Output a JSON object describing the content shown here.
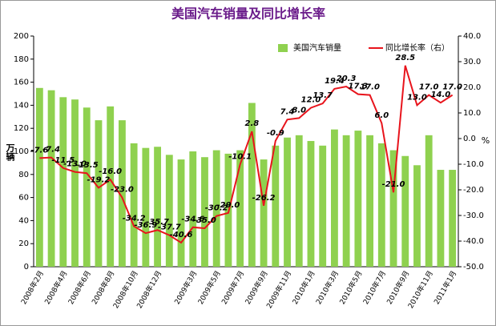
{
  "chart_data": {
    "type": "bar",
    "title": "美国汽车销量及同比增长率",
    "ylabel": "万辆",
    "y2label": "%",
    "categories": [
      "2008年2月",
      null,
      "2008年4月",
      null,
      "2008年6月",
      null,
      "2008年8月",
      null,
      "2008年10月",
      null,
      "2008年12月",
      null,
      null,
      "2009年3月",
      null,
      "2009年5月",
      null,
      "2009年7月",
      null,
      "2009年9月",
      null,
      "2009年11月",
      null,
      "2010年1月",
      null,
      "2010年3月",
      null,
      "2010年5月",
      null,
      "2010年7月",
      null,
      "2010年9月",
      null,
      "2010年11月",
      null,
      "2011年1月"
    ],
    "series": [
      {
        "name": "美国汽车销量",
        "type": "bar",
        "color": "#8fd14f",
        "values": [
          155,
          153,
          147,
          145,
          138,
          127,
          139,
          127,
          107,
          103,
          104,
          97,
          93,
          100,
          95,
          101,
          98,
          101,
          142,
          93,
          105,
          112,
          114,
          109,
          105,
          119,
          114,
          118,
          114,
          107,
          101,
          96,
          88,
          114,
          84,
          84
        ]
      },
      {
        "name": "同比增长率（右）",
        "type": "line",
        "axis": "y2",
        "color": "#e8141c",
        "values": [
          -7.6,
          -7.4,
          -11.5,
          -13.0,
          -13.5,
          -19.2,
          -16.0,
          -23.0,
          -34.2,
          -36.9,
          -35.7,
          -37.7,
          -40.6,
          -34.6,
          -35.0,
          -30.2,
          -29.0,
          -10.1,
          2.8,
          -26.2,
          -0.9,
          7.4,
          8.0,
          12.0,
          13.7,
          19.4,
          20.3,
          17.3,
          17.0,
          6.0,
          -21.0,
          28.5,
          13.0,
          17.0,
          14.0,
          17.0
        ],
        "value_labels": [
          "-7.6",
          "-7.4",
          "-11.5",
          "-13.0",
          "-13.5",
          "-19.2",
          "-16.0",
          "-23.0",
          "-34.2",
          "-36.9",
          "-35.7",
          "-37.7",
          "-40.6",
          "-34.6",
          "-35.0",
          "-30.2",
          "-29.0",
          "-10.1",
          "2.8",
          "-26.2",
          "-0.9",
          "7.4",
          "8.0",
          "12.0",
          "13.7",
          "19.4",
          "20.3",
          "17.3",
          "17.0",
          "6.0",
          "-21.0",
          "28.5",
          "13.0",
          "17.0",
          "14.0",
          "17.0"
        ]
      }
    ],
    "ylim": [
      0,
      200
    ],
    "yticks": [
      0,
      20,
      40,
      60,
      80,
      100,
      120,
      140,
      160,
      180,
      200
    ],
    "y2lim": [
      -50,
      40
    ],
    "y2ticks": [
      {
        "value": -50,
        "label": "-50.0"
      },
      {
        "value": -40,
        "label": "-40.0"
      },
      {
        "value": -30,
        "label": "-30.0"
      },
      {
        "value": -20,
        "label": "-20.0"
      },
      {
        "value": -10,
        "label": "-10.0"
      },
      {
        "value": 0,
        "label": "0.0"
      },
      {
        "value": 10,
        "label": "10.0"
      },
      {
        "value": 20,
        "label": "20.0"
      },
      {
        "value": 30,
        "label": "30.0"
      },
      {
        "value": 40,
        "label": "40.0"
      }
    ],
    "legend": "top-right"
  }
}
